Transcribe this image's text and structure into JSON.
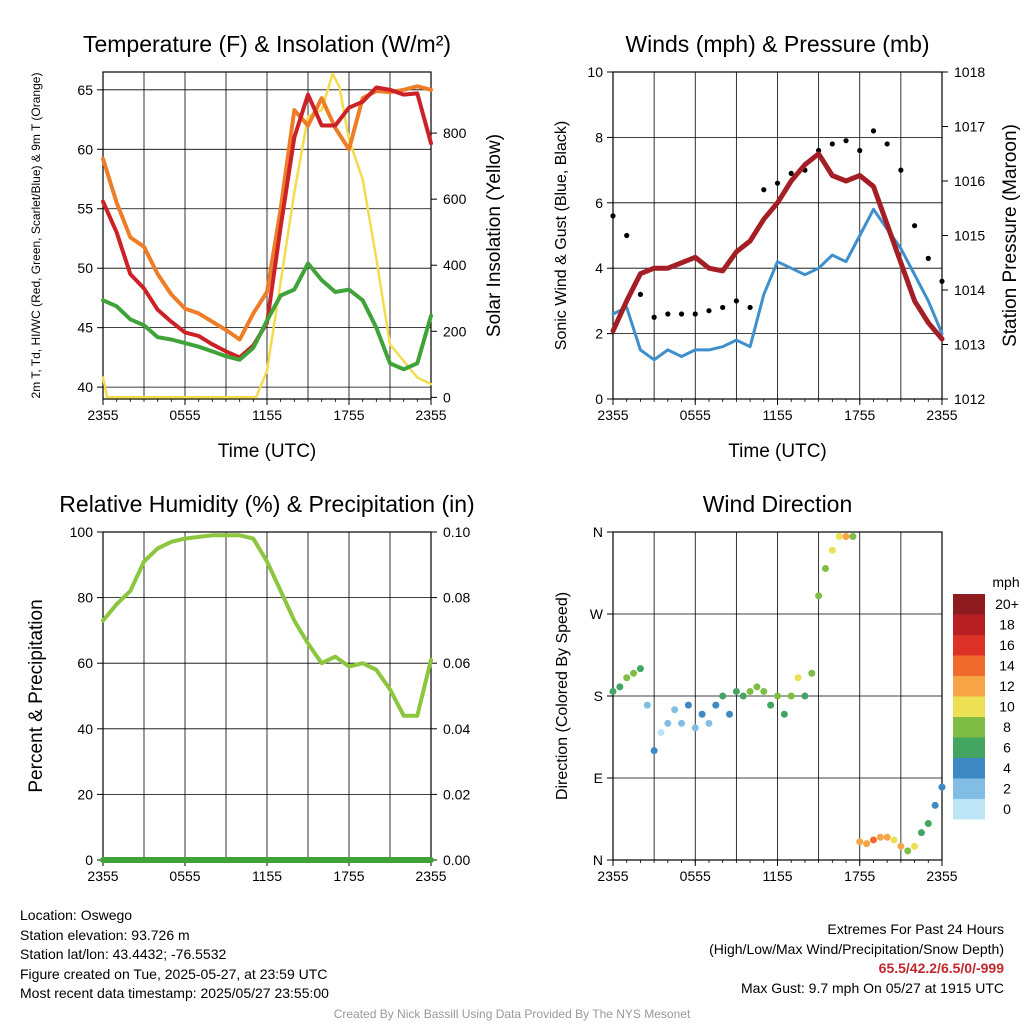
{
  "chart_data": [
    {
      "type": "line",
      "title": "Temperature (F) & Insolation (W/m²)",
      "xlabel": "Time (UTC)",
      "ylabel_left": "2m T, Td, HI/WC (Red, Green, Scarlet/Blue) & 9m T (Orange)",
      "ylabel_right": "Solar Insolation (Yellow)",
      "x_ticks": [
        "2355",
        "0555",
        "1155",
        "1755",
        "2355"
      ],
      "y_ticks": [
        40,
        45,
        50,
        55,
        60,
        65
      ],
      "ylim": [
        39,
        66.5
      ],
      "y2_ticks": [
        0,
        200,
        400,
        600,
        800
      ],
      "y2lim": [
        -5,
        985
      ],
      "grid": true,
      "x": [
        0,
        1,
        2,
        3,
        4,
        5,
        6,
        7,
        8,
        9,
        10,
        11,
        12,
        13,
        14,
        15,
        16,
        17,
        18,
        19,
        20,
        21,
        22,
        23,
        24
      ],
      "series": [
        {
          "color": "#ee7d28",
          "values": [
            59.2,
            55.5,
            52.6,
            51.8,
            49.5,
            47.8,
            46.6,
            46.2,
            45.5,
            44.8,
            44.0,
            46.2,
            48.0,
            55.0,
            63.3,
            62.0,
            64.3,
            61.8,
            60.0,
            64.3,
            64.9,
            64.8,
            65.0,
            65.3,
            65.0
          ]
        },
        {
          "color": "#cc2127",
          "values": [
            55.6,
            53.0,
            49.5,
            48.3,
            46.5,
            45.5,
            44.6,
            44.3,
            43.6,
            43.0,
            42.5,
            43.5,
            45.4,
            53.5,
            61.0,
            64.6,
            62.0,
            62.0,
            63.5,
            64.0,
            65.2,
            65.0,
            64.6,
            64.7,
            60.5
          ]
        },
        {
          "color": "#3fa33a",
          "values": [
            47.3,
            46.8,
            45.7,
            45.2,
            44.2,
            44.0,
            43.7,
            43.4,
            43.0,
            42.6,
            42.3,
            43.3,
            45.6,
            47.7,
            48.2,
            50.4,
            49.0,
            48.0,
            48.2,
            47.3,
            45.0,
            42.0,
            41.5,
            42.0,
            46.0
          ]
        }
      ],
      "insolation": {
        "color": "#f3dc4c",
        "x": [
          0,
          0.3,
          0.6,
          10.5,
          11.2,
          12,
          13,
          14,
          15,
          16,
          16.8,
          17.3,
          18,
          19,
          20,
          21,
          22,
          23,
          24
        ],
        "values": [
          60,
          0,
          0,
          0,
          0,
          80,
          350,
          620,
          850,
          870,
          980,
          940,
          780,
          660,
          420,
          160,
          110,
          60,
          40
        ]
      }
    },
    {
      "type": "scatter",
      "title": "Winds (mph) & Pressure (mb)",
      "xlabel": "Time (UTC)",
      "ylabel_left": "Sonic Wind & Gust (Blue, Black)",
      "ylabel_right": "Station Pressure (Maroon)",
      "x_ticks": [
        "2355",
        "0555",
        "1155",
        "1755",
        "2355"
      ],
      "y_ticks": [
        0,
        2,
        4,
        6,
        8,
        10
      ],
      "ylim": [
        0,
        10
      ],
      "y2_ticks": [
        1012,
        1013,
        1014,
        1015,
        1016,
        1017,
        1018
      ],
      "y2lim": [
        1012,
        1018
      ],
      "grid": true,
      "x": [
        0,
        1,
        2,
        3,
        4,
        5,
        6,
        7,
        8,
        9,
        10,
        11,
        12,
        13,
        14,
        15,
        16,
        17,
        18,
        19,
        20,
        21,
        22,
        23,
        24
      ],
      "series": [
        {
          "color": "#3e8fcc",
          "values": [
            2.6,
            2.8,
            1.5,
            1.2,
            1.5,
            1.3,
            1.5,
            1.5,
            1.6,
            1.8,
            1.6,
            3.2,
            4.2,
            4.0,
            3.8,
            4.0,
            4.4,
            4.2,
            5.0,
            5.8,
            5.2,
            4.6,
            3.8,
            3.0,
            2.0
          ]
        },
        {
          "color": "#000000",
          "values": [
            5.6,
            5.0,
            3.2,
            2.5,
            2.6,
            2.6,
            2.6,
            2.7,
            2.8,
            3.0,
            2.8,
            6.4,
            6.6,
            6.9,
            7.0,
            7.6,
            7.8,
            7.9,
            7.6,
            8.2,
            7.8,
            7.0,
            5.3,
            4.3,
            3.6
          ]
        }
      ],
      "pressure": {
        "color": "#a31f25",
        "x": [
          0,
          1,
          2,
          3,
          4,
          5,
          6,
          7,
          8,
          9,
          10,
          11,
          12,
          13,
          14,
          15,
          16,
          17,
          18,
          19,
          20,
          21,
          22,
          23,
          24
        ],
        "values": [
          1013.25,
          1013.8,
          1014.3,
          1014.4,
          1014.4,
          1014.5,
          1014.6,
          1014.4,
          1014.35,
          1014.7,
          1014.9,
          1015.3,
          1015.6,
          1016.0,
          1016.3,
          1016.5,
          1016.1,
          1016.0,
          1016.1,
          1015.9,
          1015.2,
          1014.5,
          1013.8,
          1013.4,
          1013.1
        ]
      }
    },
    {
      "type": "line",
      "title": "Relative Humidity (%) & Precipitation (in)",
      "ylabel_left": "Percent & Precipitation",
      "x_ticks": [
        "2355",
        "0555",
        "1155",
        "1755",
        "2355"
      ],
      "y_ticks": [
        0,
        20,
        40,
        60,
        80,
        100
      ],
      "ylim": [
        0,
        100
      ],
      "y2_ticks": [
        "0.00",
        "0.02",
        "0.04",
        "0.06",
        "0.08",
        "0.10"
      ],
      "y2lim": [
        0,
        0.1
      ],
      "grid": true,
      "x": [
        0,
        1,
        2,
        3,
        4,
        5,
        6,
        7,
        8,
        9,
        10,
        11,
        12,
        13,
        14,
        15,
        16,
        17,
        18,
        19,
        20,
        21,
        22,
        23,
        24
      ],
      "series": [
        {
          "color": "#8cc63f",
          "values": [
            73,
            78,
            82,
            91,
            95,
            97,
            98,
            98.5,
            99,
            99,
            99,
            98,
            91,
            82,
            73,
            66,
            60,
            62,
            59,
            60,
            58,
            52,
            44,
            44,
            61
          ]
        },
        {
          "color": "#3fa33a",
          "values": [
            0,
            0,
            0,
            0,
            0,
            0,
            0,
            0,
            0,
            0,
            0,
            0,
            0,
            0,
            0,
            0,
            0,
            0,
            0,
            0,
            0,
            0,
            0,
            0,
            0
          ]
        }
      ]
    },
    {
      "type": "scatter",
      "title": "Wind Direction",
      "ylabel_left": "Direction (Colored By Speed)",
      "x_ticks": [
        "2355",
        "0555",
        "1155",
        "1755",
        "2355"
      ],
      "y_ticks": [
        "N",
        "E",
        "S",
        "W",
        "N"
      ],
      "ylim": [
        0,
        360
      ],
      "grid": true,
      "x": [
        0,
        0.5,
        1,
        1.5,
        2,
        2.5,
        3,
        3.5,
        4,
        4.5,
        5,
        5.5,
        6,
        6.5,
        7,
        7.5,
        8,
        8.5,
        9,
        9.5,
        10,
        10.5,
        11,
        11.5,
        12,
        12.5,
        13,
        13.5,
        14,
        14.5,
        15,
        15.5,
        16,
        16.5,
        17,
        17.5,
        18,
        18.5,
        19,
        19.5,
        20,
        20.5,
        21,
        21.5,
        22,
        22.5,
        23,
        23.5,
        24
      ],
      "series": [
        {
          "name": "direction",
          "values": [
            185,
            190,
            200,
            205,
            210,
            170,
            120,
            140,
            150,
            165,
            150,
            170,
            145,
            160,
            150,
            170,
            180,
            160,
            185,
            180,
            185,
            190,
            185,
            170,
            180,
            160,
            180,
            200,
            180,
            205,
            290,
            320,
            340,
            355,
            355,
            355,
            20,
            18,
            22,
            25,
            25,
            22,
            15,
            10,
            15,
            30,
            40,
            60,
            80
          ],
          "speed": [
            3,
            3,
            4,
            4,
            3,
            1,
            2,
            0,
            1,
            1,
            1,
            2,
            1,
            2,
            1,
            2,
            3,
            2,
            3,
            3,
            4,
            4,
            4,
            3,
            4,
            3,
            4,
            5,
            3,
            4,
            4,
            4,
            5,
            5,
            6,
            4,
            6,
            6,
            7,
            6,
            6,
            5,
            6,
            4,
            5,
            3,
            3,
            2,
            2
          ]
        }
      ],
      "legend": {
        "title": "mph",
        "labels": [
          "20+",
          "18",
          "16",
          "14",
          "12",
          "10",
          "8",
          "6",
          "4",
          "2",
          "0"
        ],
        "colors": [
          "#8e1b1f",
          "#b81f25",
          "#dc3127",
          "#ef6a2c",
          "#f7a447",
          "#ece054",
          "#7fbd45",
          "#44a563",
          "#3e89c3",
          "#82bde4",
          "#bde4f7"
        ]
      }
    }
  ],
  "info": {
    "location": "Location: Oswego",
    "elevation": "Station elevation: 93.726 m",
    "latlon": "Station lat/lon: 43.4432; -76.5532",
    "created": "Figure created on Tue, 2025-05-27, at 23:59 UTC",
    "recent": "Most recent data timestamp: 2025/05/27 23:55:00"
  },
  "extremes": {
    "heading": "Extremes For Past 24 Hours",
    "subheading": "(High/Low/Max Wind/Precipitation/Snow Depth)",
    "values": "65.5/42.2/6.5/0/-999",
    "max_gust": "Max Gust: 9.7 mph On 05/27 at 1915 UTC"
  },
  "credit": "Created By Nick Bassill Using Data Provided By The NYS Mesonet"
}
